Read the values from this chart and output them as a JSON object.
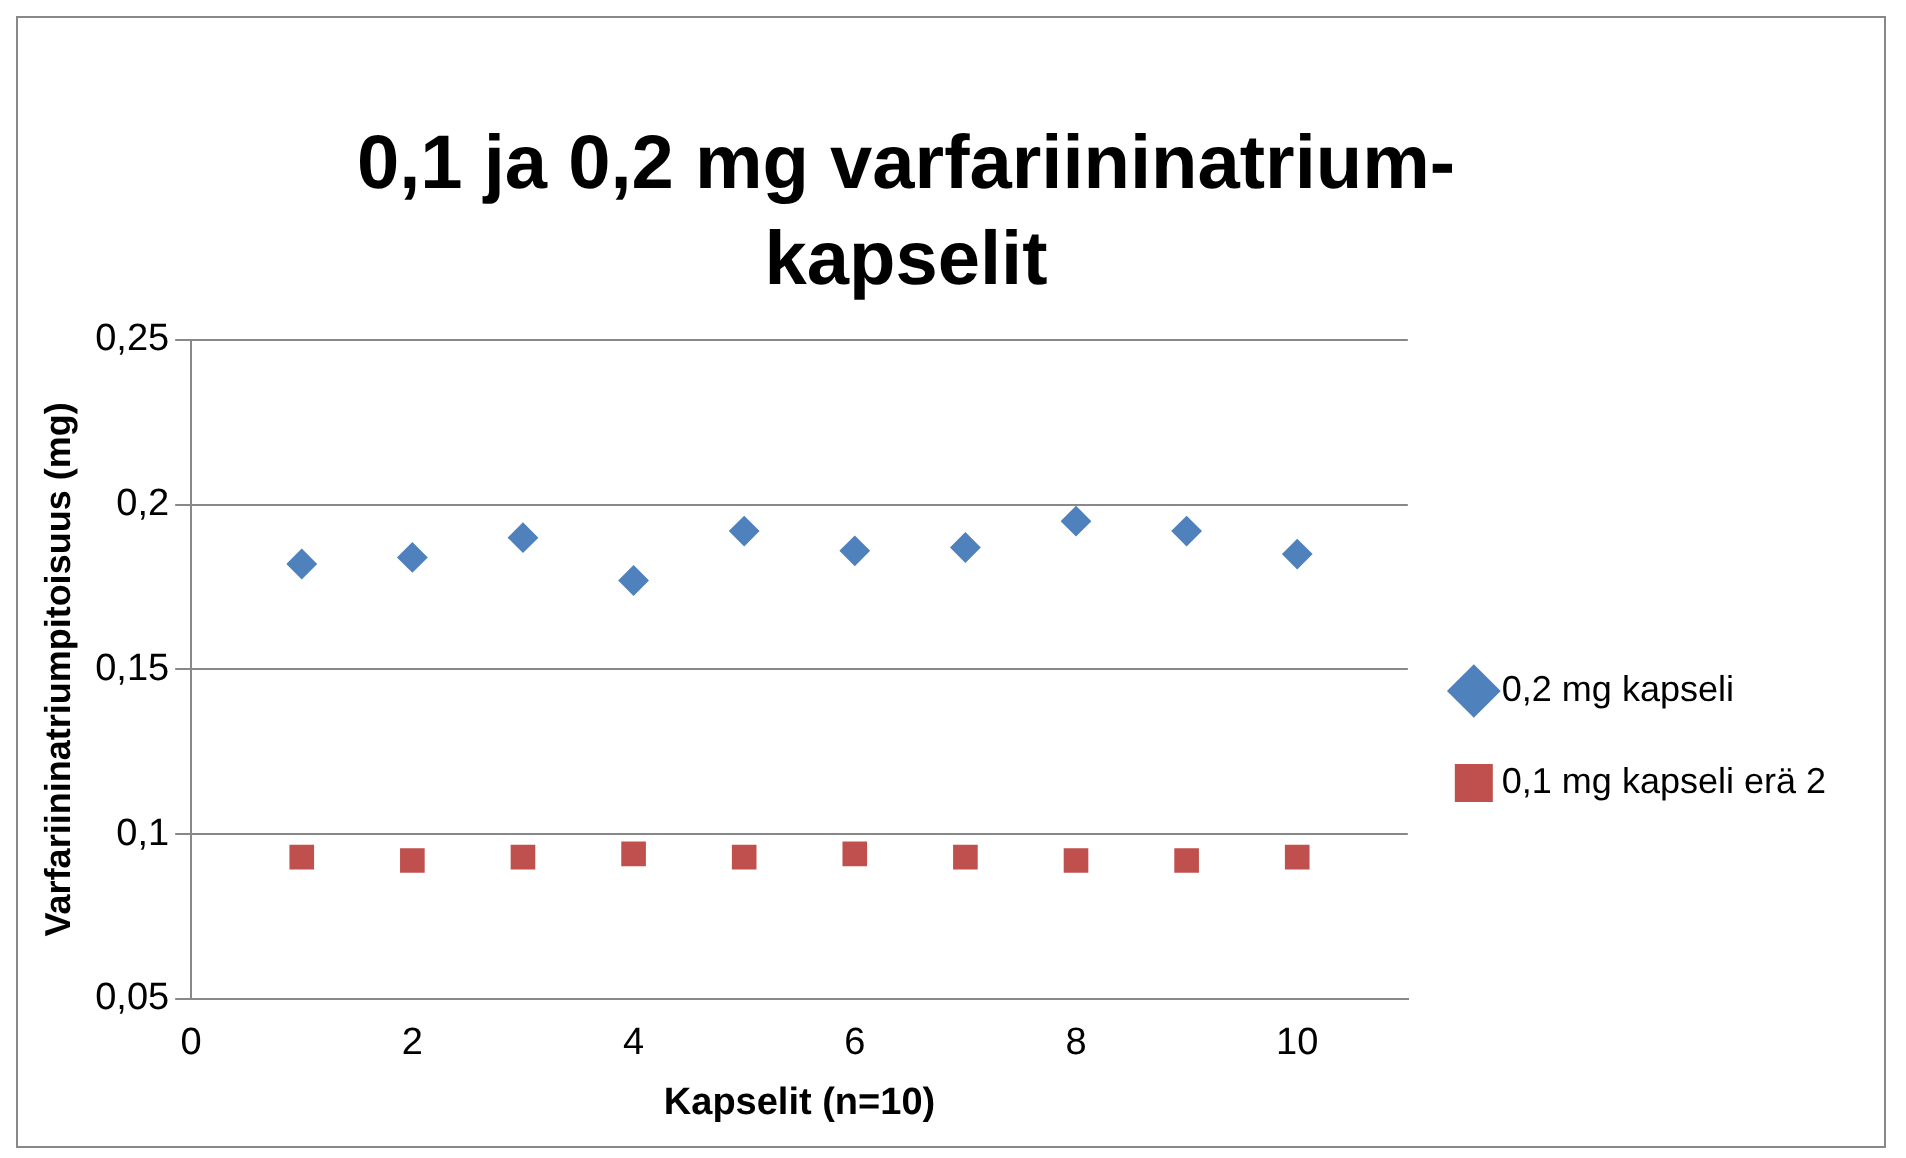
{
  "chart_data": {
    "type": "scatter",
    "title": "0,1 ja 0,2 mg varfariininatrium-kapselit",
    "xlabel": "Kapselit (n=10)",
    "ylabel": "Varfariininatriumpitoisuus (mg)",
    "x": [
      1,
      2,
      3,
      4,
      5,
      6,
      7,
      8,
      9,
      10
    ],
    "series": [
      {
        "name": "0,2 mg kapseli",
        "color": "#4f81bd",
        "marker": "diamond",
        "values": [
          0.182,
          0.184,
          0.19,
          0.177,
          0.192,
          0.186,
          0.187,
          0.195,
          0.192,
          0.185
        ]
      },
      {
        "name": "0,1 mg kapseli erä 2",
        "color": "#c0504d",
        "marker": "square",
        "values": [
          0.093,
          0.092,
          0.093,
          0.094,
          0.093,
          0.094,
          0.093,
          0.092,
          0.092,
          0.093
        ]
      }
    ],
    "xlim": [
      0,
      11
    ],
    "xticks": [
      0,
      2,
      4,
      6,
      8,
      10
    ],
    "ylim": [
      0.05,
      0.25
    ],
    "yticks": [
      {
        "value": 0.05,
        "label": "0,05"
      },
      {
        "value": 0.1,
        "label": "0,1"
      },
      {
        "value": 0.15,
        "label": "0,15"
      },
      {
        "value": 0.2,
        "label": "0,2"
      },
      {
        "value": 0.25,
        "label": "0,25"
      }
    ],
    "grid": "y",
    "legend": "right"
  }
}
